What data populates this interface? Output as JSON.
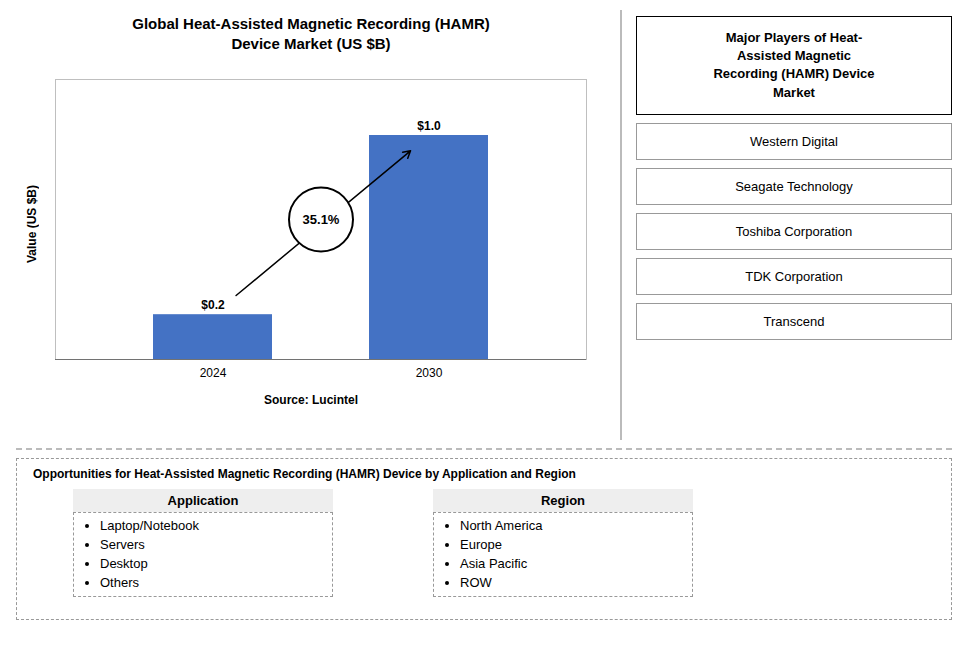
{
  "chart_data": {
    "type": "bar",
    "title": "Global Heat-Assisted Magnetic Recording (HAMR)\nDevice Market (US $B)",
    "categories": [
      "2024",
      "2030"
    ],
    "values": [
      0.2,
      1.0
    ],
    "value_labels": [
      "$0.2",
      "$1.0"
    ],
    "data_labels": true,
    "color": "#4472C4",
    "ylabel": "Value (US $B)",
    "ylim": [
      0,
      1.25
    ],
    "tick_labels": "x",
    "grid": false,
    "annotations": [
      "35.1%"
    ],
    "source": "Source: Lucintel",
    "side_panel": {
      "title": "Major Players of Heat-\nAssisted Magnetic\nRecording (HAMR) Device\nMarket",
      "items": [
        "Western Digital",
        "Seagate Technology",
        "Toshiba Corporation",
        "TDK Corporation",
        "Transcend"
      ]
    },
    "bottom_panel": {
      "title": "Opportunities for Heat-Assisted Magnetic Recording (HAMR) Device by Application and Region",
      "groups": [
        {
          "title": "Application",
          "items": [
            "Laptop/Notebook",
            "Servers",
            "Desktop",
            "Others"
          ]
        },
        {
          "title": "Region",
          "items": [
            "North America",
            "Europe",
            "Asia Pacific",
            "ROW"
          ]
        }
      ]
    }
  }
}
